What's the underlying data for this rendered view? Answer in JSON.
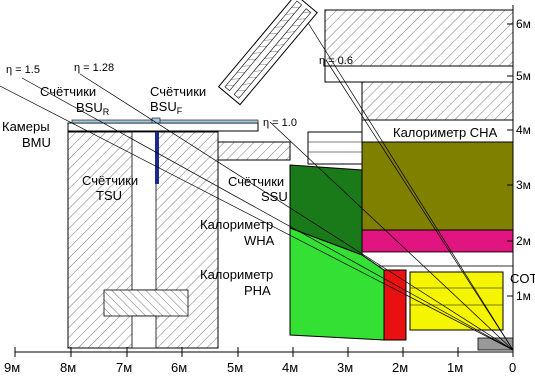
{
  "labels": {
    "bsu_r": [
      "Счётчики",
      "BSU",
      "R"
    ],
    "bsu_f": [
      "Счётчики",
      "BSU",
      "F"
    ],
    "bmu": [
      "Камеры",
      "BMU"
    ],
    "tsu": [
      "Счётчики",
      "TSU"
    ],
    "ssu": [
      "Счётчики",
      "SSU"
    ],
    "wha": [
      "Калориметр",
      "WHA"
    ],
    "pha": [
      "Калориметр",
      "PHA"
    ],
    "cha": "Калориметр CHA",
    "cot": "COT"
  },
  "eta_labels": [
    "η = 1.5",
    "η = 1.28",
    "η = 1.0",
    "η = 0.6"
  ],
  "x_axis_ticks": [
    "9м",
    "8м",
    "7м",
    "6м",
    "5м",
    "4м",
    "3м",
    "2м",
    "1м",
    "0"
  ],
  "y_axis_ticks": [
    "6м",
    "5м",
    "4м",
    "3м",
    "2м",
    "1м"
  ],
  "colors": {
    "cha": "#808000",
    "pink": "#e0157f",
    "wha": "#1a7a1a",
    "pha": "#33e033",
    "red": "#e81010",
    "yellow": "#f5f500",
    "blue_counter": "#1a2a8a",
    "plate": "#a0c8e0"
  }
}
